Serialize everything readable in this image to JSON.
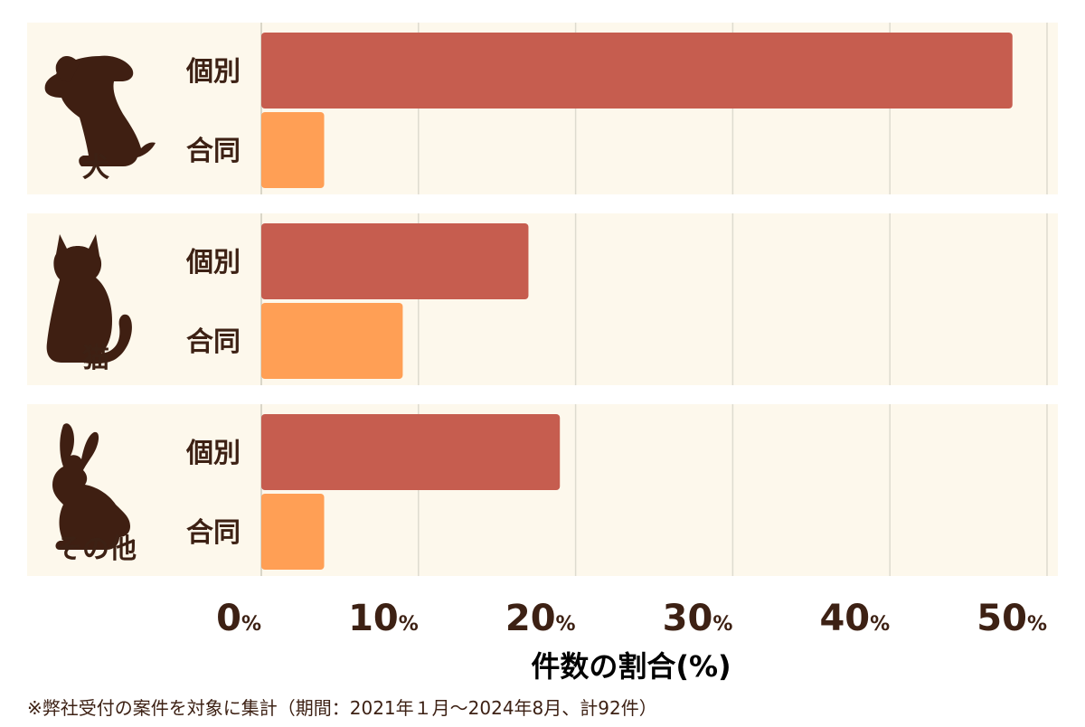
{
  "chart_data": {
    "type": "bar",
    "orientation": "horizontal",
    "groups": [
      {
        "label": "犬",
        "icon": "dog-icon",
        "bars": [
          {
            "label": "個別",
            "value": 47.8,
            "color": "#c65d4f"
          },
          {
            "label": "合同",
            "value": 4.0,
            "color": "#ff9f55"
          }
        ]
      },
      {
        "label": "猫",
        "icon": "cat-icon",
        "bars": [
          {
            "label": "個別",
            "value": 17.0,
            "color": "#c65d4f"
          },
          {
            "label": "合同",
            "value": 9.0,
            "color": "#ff9f55"
          }
        ]
      },
      {
        "label": "その他",
        "icon": "rabbit-icon",
        "bars": [
          {
            "label": "個別",
            "value": 19.0,
            "color": "#c65d4f"
          },
          {
            "label": "合同",
            "value": 4.0,
            "color": "#ff9f55"
          }
        ]
      }
    ],
    "xlim": [
      0,
      50
    ],
    "xticks": [
      0,
      10,
      20,
      30,
      40,
      50
    ],
    "tick_unit": "%",
    "xlabel": "件数の割合(%)",
    "grid": true,
    "panel_color": "#fdf8ec",
    "grid_color": "#dedbcf",
    "text_color": "#3d2114"
  },
  "footnote": "※弊社受付の案件を対象に集計（期間：2021年１月〜2024年8月、計92件）"
}
